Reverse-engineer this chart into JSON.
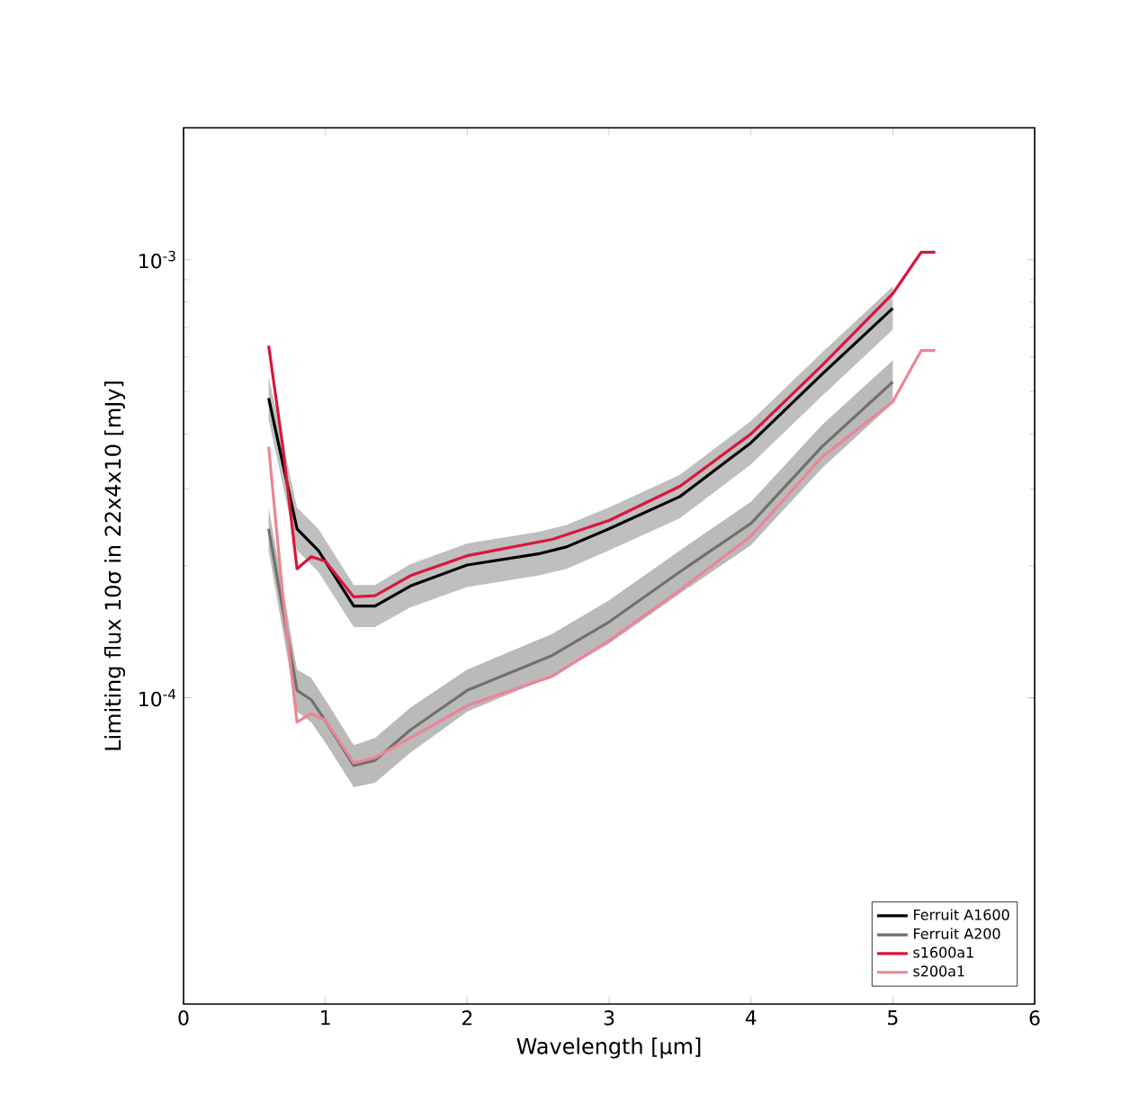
{
  "chart_data": {
    "type": "line",
    "xlabel": "Wavelength [μm]",
    "ylabel": "Limiting flux 10σ in 22x4x10 [mJy]",
    "xlim": [
      0,
      6
    ],
    "ylim": [
      2e-05,
      0.002
    ],
    "log": "y",
    "legend": "bottom right",
    "grid": false,
    "xticks": [
      0,
      1,
      2,
      3,
      4,
      5,
      6
    ],
    "yticks": [
      {
        "value": 0.0001,
        "label": "10$^{-4}$"
      },
      {
        "value": 0.001,
        "label": "10$^{-3}$"
      }
    ],
    "series": [
      {
        "name": "Ferruit A1600",
        "color": "#000000",
        "x": [
          0.6,
          0.8,
          0.95,
          1.2,
          1.35,
          1.6,
          2.0,
          2.5,
          2.7,
          3.0,
          3.5,
          4.0,
          4.5,
          5.0
        ],
        "values": [
          0.000483,
          0.000243,
          0.000217,
          0.000162,
          0.000162,
          0.00018,
          0.000201,
          0.000213,
          0.000221,
          0.000243,
          0.000288,
          0.000382,
          0.000547,
          0.000775
        ],
        "lower": [
          0.000431,
          0.000217,
          0.000194,
          0.000145,
          0.000145,
          0.000161,
          0.000179,
          0.00019,
          0.000197,
          0.000217,
          0.000257,
          0.000341,
          0.000488,
          0.000692
        ],
        "upper": [
          0.000541,
          0.000272,
          0.000243,
          0.000181,
          0.000181,
          0.000202,
          0.000225,
          0.000239,
          0.000248,
          0.000272,
          0.000323,
          0.000428,
          0.000613,
          0.000868
        ]
      },
      {
        "name": "Ferruit A200",
        "color": "#707070",
        "x": [
          0.6,
          0.8,
          0.9,
          1.0,
          1.2,
          1.35,
          1.6,
          2.0,
          2.6,
          3.0,
          3.5,
          4.0,
          4.5,
          5.0
        ],
        "values": [
          0.000243,
          0.000104,
          9.9e-05,
          8.86e-05,
          7e-05,
          7.2e-05,
          8.45e-05,
          0.000104,
          0.000125,
          0.000149,
          0.000194,
          0.00025,
          0.000374,
          0.000526
        ],
        "lower": [
          0.000217,
          9.3e-05,
          8.8e-05,
          7.9e-05,
          6.25e-05,
          6.4e-05,
          7.5e-05,
          9.3e-05,
          0.000112,
          0.000133,
          0.000173,
          0.000223,
          0.000334,
          0.00047
        ],
        "upper": [
          0.000272,
          0.000116,
          0.000111,
          9.9e-05,
          7.8e-05,
          8.1e-05,
          9.5e-05,
          0.000116,
          0.00014,
          0.000167,
          0.000217,
          0.00028,
          0.000419,
          0.000589
        ]
      },
      {
        "name": "s1600a1",
        "color": "#d8173a",
        "x": [
          0.6,
          0.7,
          0.8,
          0.9,
          1.0,
          1.2,
          1.35,
          1.6,
          2.0,
          2.6,
          3.0,
          3.5,
          4.0,
          4.5,
          5.0,
          5.2,
          5.3
        ],
        "values": [
          0.000636,
          0.000374,
          0.000197,
          0.00021,
          0.000205,
          0.00017,
          0.000171,
          0.00019,
          0.000211,
          0.00023,
          0.000254,
          0.000304,
          0.0004,
          0.000573,
          0.000836,
          0.00104,
          0.00104
        ]
      },
      {
        "name": "s200a1",
        "color": "#ec8495",
        "x": [
          0.6,
          0.7,
          0.8,
          0.9,
          1.0,
          1.2,
          1.35,
          1.6,
          2.0,
          2.6,
          3.0,
          3.5,
          4.0,
          4.5,
          5.0,
          5.2,
          5.3
        ],
        "values": [
          0.000374,
          0.000171,
          8.8e-05,
          9.2e-05,
          8.9e-05,
          7.1e-05,
          7.3e-05,
          8.1e-05,
          9.6e-05,
          0.000112,
          0.000135,
          0.000176,
          0.000234,
          0.000354,
          0.000474,
          0.00062,
          0.00062
        ]
      }
    ]
  }
}
